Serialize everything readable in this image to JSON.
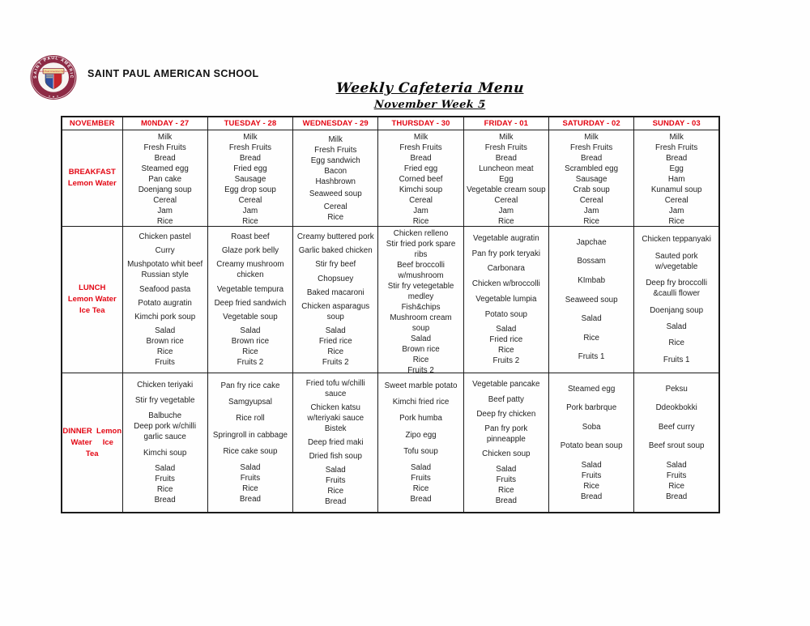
{
  "colors": {
    "accent_red": "#e30613",
    "text": "#1f1f1f",
    "table_border": "#1b1b1b",
    "logo_maroon": "#8d2b45",
    "logo_blue": "#2e4f9e",
    "logo_red": "#c6252b",
    "logo_gold": "#efde9f"
  },
  "header": {
    "school_name": "SAINT PAUL AMERICAN SCHOOL",
    "title": "Weekly Cafeteria Menu",
    "subtitle": "November Week 5",
    "logo": {
      "ring_text": "SAINT PAUL AMERICAN SCHOOL",
      "banner_text": "Saint Paul American School"
    }
  },
  "menu_table": {
    "columns": [
      "NOVEMBER",
      "M0NDAY - 27",
      "TUESDAY - 28",
      "WEDNESDAY - 29",
      "THURSDAY - 30",
      "FRIDAY - 01",
      "SATURDAY - 02",
      "SUNDAY - 03"
    ],
    "rows": [
      {
        "meal_lines": [
          "BREAKFAST",
          "Lemon Water"
        ],
        "cells": [
          [
            [
              "Milk",
              "Fresh Fruits",
              "Bread",
              "Steamed egg",
              "Pan cake"
            ],
            [
              "Doenjang soup"
            ],
            [
              "Cereal",
              "Jam",
              "Rice"
            ]
          ],
          [
            [
              "Milk",
              "Fresh Fruits",
              "Bread",
              "Fried egg",
              "Sausage"
            ],
            [
              "Egg drop soup"
            ],
            [
              "Cereal",
              "Jam",
              "Rice"
            ]
          ],
          [
            [
              "Milk",
              "Fresh Fruits",
              "Egg sandwich",
              "Bacon",
              "Hashbrown"
            ],
            [
              "Seaweed soup"
            ],
            [
              "Cereal",
              "Rice"
            ]
          ],
          [
            [
              "Milk",
              "Fresh Fruits",
              "Bread",
              "Fried egg",
              "Corned beef"
            ],
            [
              "Kimchi soup"
            ],
            [
              "Cereal",
              "Jam",
              "Rice"
            ]
          ],
          [
            [
              "Milk",
              "Fresh Fruits",
              "Bread",
              "Luncheon meat",
              "Egg"
            ],
            [
              "Vegetable cream soup"
            ],
            [
              "Cereal",
              "Jam",
              "Rice"
            ]
          ],
          [
            [
              "Milk",
              "Fresh Fruits",
              "Bread",
              "Scrambled egg",
              "Sausage"
            ],
            [
              "Crab soup"
            ],
            [
              "Cereal",
              "Jam",
              "Rice"
            ]
          ],
          [
            [
              "Milk",
              "Fresh Fruits",
              "Bread",
              "Egg",
              "Ham"
            ],
            [
              "Kunamul soup"
            ],
            [
              "Cereal",
              "Jam",
              "Rice"
            ]
          ]
        ]
      },
      {
        "meal_lines": [
          "LUNCH",
          "Lemon Water",
          "Ice Tea"
        ],
        "cells": [
          [
            [
              "Chicken pastel"
            ],
            [
              "Curry"
            ],
            [
              "Mushpotato whit beef Russian style"
            ],
            [
              "Seafood pasta"
            ],
            [
              "Potato augratin"
            ],
            [
              "Kimchi pork soup"
            ],
            [
              "Salad",
              "Brown rice",
              "Rice",
              "Fruits"
            ]
          ],
          [
            [
              "Roast beef"
            ],
            [
              "Glaze pork belly"
            ],
            [
              "Creamy mushroom chicken"
            ],
            [
              "Vegetable tempura"
            ],
            [
              "Deep fried sandwich"
            ],
            [
              "Vegetable soup"
            ],
            [
              "Salad",
              "Brown rice",
              "Rice",
              "Fruits 2"
            ]
          ],
          [
            [
              "Creamy buttered pork"
            ],
            [
              "Garlic baked chicken"
            ],
            [
              "Stir fry beef"
            ],
            [
              "Chopsuey"
            ],
            [
              "Baked macaroni"
            ],
            [
              "Chicken asparagus soup"
            ],
            [
              "Salad",
              "Fried rice",
              "Rice",
              "Fruits 2"
            ]
          ],
          [
            [
              "Chicken relleno"
            ],
            [
              "Stir fried pork spare ribs"
            ],
            [
              "Beef broccolli w/mushroom"
            ],
            [
              "Stir fry vetegetable medley"
            ],
            [
              "Fish&chips"
            ],
            [
              "Mushroom cream soup"
            ],
            [
              "Salad",
              "Brown rice",
              "Rice",
              "Fruits 2"
            ]
          ],
          [
            [
              "Vegetable augratin"
            ],
            [
              "Pan fry pork teryaki"
            ],
            [
              "Carbonara"
            ],
            [
              "Chicken w/broccolli"
            ],
            [
              "Vegetable lumpia"
            ],
            [
              "Potato soup"
            ],
            [
              "Salad",
              "Fried rice",
              "Rice",
              "Fruits 2"
            ]
          ],
          [
            [
              "Japchae"
            ],
            [
              "Bossam"
            ],
            [
              "KImbab"
            ],
            [
              "Seaweed soup"
            ],
            [
              "Salad"
            ],
            [
              "Rice"
            ],
            [
              "Fruits 1"
            ]
          ],
          [
            [
              "Chicken teppanyaki"
            ],
            [
              "Sauted pork w/vegetable"
            ],
            [
              "Deep fry broccolli &caulli flower"
            ],
            [
              "Doenjang soup"
            ],
            [
              "Salad"
            ],
            [
              "Rice"
            ],
            [
              "Fruits 1"
            ]
          ]
        ]
      },
      {
        "meal_lines": [
          "DINNER  Lemon",
          "Water     Ice",
          "Tea"
        ],
        "cells": [
          [
            [
              "Chicken teriyaki"
            ],
            [
              "Stir fry vegetable"
            ],
            [
              "Balbuche",
              "Deep pork w/chilli garlic sauce"
            ],
            [
              "Kimchi soup"
            ],
            [
              "Salad",
              "Fruits",
              "Rice",
              "Bread"
            ]
          ],
          [
            [
              "Pan fry rice cake"
            ],
            [
              "Samgyupsal"
            ],
            [
              "Rice roll"
            ],
            [
              "Springroll in cabbage"
            ],
            [
              "Rice cake soup"
            ],
            [
              "Salad",
              "Fruits",
              "Rice",
              "Bread"
            ]
          ],
          [
            [
              "Fried tofu w/chilli sauce"
            ],
            [
              "Chicken katsu w/teriyaki sauce",
              "Bistek"
            ],
            [
              "Deep fried maki"
            ],
            [
              "Dried fish soup"
            ],
            [
              "Salad",
              "Fruits",
              "Rice",
              "Bread"
            ]
          ],
          [
            [
              "Sweet marble potato"
            ],
            [
              "Kimchi fried rice"
            ],
            [
              "Pork humba"
            ],
            [
              "Zipo egg"
            ],
            [
              "Tofu soup"
            ],
            [
              "Salad",
              "Fruits",
              "Rice",
              "Bread"
            ]
          ],
          [
            [
              "Vegetable pancake"
            ],
            [
              "Beef patty"
            ],
            [
              "Deep fry chicken"
            ],
            [
              "Pan fry pork pinneapple"
            ],
            [
              "Chicken soup"
            ],
            [
              "Salad",
              "Fruits",
              "Rice",
              "Bread"
            ]
          ],
          [
            [
              "Steamed egg"
            ],
            [
              "Pork barbrque"
            ],
            [
              "Soba"
            ],
            [
              "Potato bean soup"
            ],
            [
              "Salad",
              "Fruits",
              "Rice",
              "Bread"
            ]
          ],
          [
            [
              "Peksu"
            ],
            [
              "Ddeokbokki"
            ],
            [
              "Beef curry"
            ],
            [
              "Beef srout soup"
            ],
            [
              "Salad",
              "Fruits",
              "Rice",
              "Bread"
            ]
          ]
        ]
      }
    ]
  }
}
